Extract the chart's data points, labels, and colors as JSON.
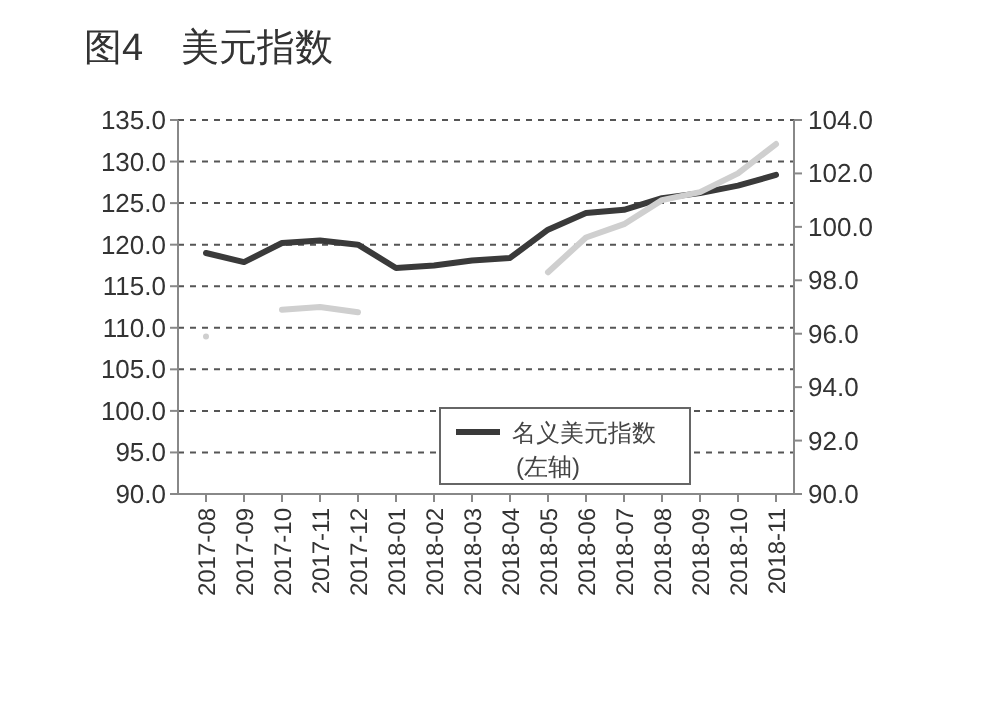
{
  "chart_data": {
    "type": "line",
    "title": "图4　美元指数",
    "categories": [
      "2017-08",
      "2017-09",
      "2017-10",
      "2017-11",
      "2017-12",
      "2018-01",
      "2018-02",
      "2018-03",
      "2018-04",
      "2018-05",
      "2018-06",
      "2018-07",
      "2018-08",
      "2018-09",
      "2018-10",
      "2018-11"
    ],
    "series": [
      {
        "name": "名义美元指数 (左轴)",
        "color": "#3a3a3a",
        "values": [
          119.0,
          117.9,
          120.2,
          120.5,
          120.0,
          117.2,
          117.5,
          118.1,
          118.4,
          121.8,
          123.8,
          124.2,
          125.6,
          126.2,
          127.1,
          128.4
        ]
      },
      {
        "color": "#cfcfcf",
        "axis": "y2",
        "values": [
          95.9,
          null,
          96.9,
          97.0,
          96.8,
          null,
          null,
          null,
          null,
          98.3,
          99.6,
          100.1,
          101.0,
          101.3,
          102.0,
          103.1
        ]
      }
    ],
    "ylim": [
      90,
      135
    ],
    "yticks": [
      {
        "value": 90,
        "label": "90.0"
      },
      {
        "value": 95,
        "label": "95.0"
      },
      {
        "value": 100,
        "label": "100.0"
      },
      {
        "value": 105,
        "label": "105.0"
      },
      {
        "value": 110,
        "label": "110.0"
      },
      {
        "value": 115,
        "label": "115.0"
      },
      {
        "value": 120,
        "label": "120.0"
      },
      {
        "value": 125,
        "label": "125.0"
      },
      {
        "value": 130,
        "label": "130.0"
      },
      {
        "value": 135,
        "label": "135.0"
      }
    ],
    "y2lim": [
      90,
      104
    ],
    "y2ticks": [
      {
        "value": 90,
        "label": "90.0"
      },
      {
        "value": 92,
        "label": "92.0"
      },
      {
        "value": 94,
        "label": "94.0"
      },
      {
        "value": 96,
        "label": "96.0"
      },
      {
        "value": 98,
        "label": "98.0"
      },
      {
        "value": 100,
        "label": "100.0"
      },
      {
        "value": 102,
        "label": "102.0"
      },
      {
        "value": 104,
        "label": "104.0"
      }
    ],
    "grid": "y",
    "legend": "bottom",
    "line_style": "solid",
    "marker": "none"
  }
}
